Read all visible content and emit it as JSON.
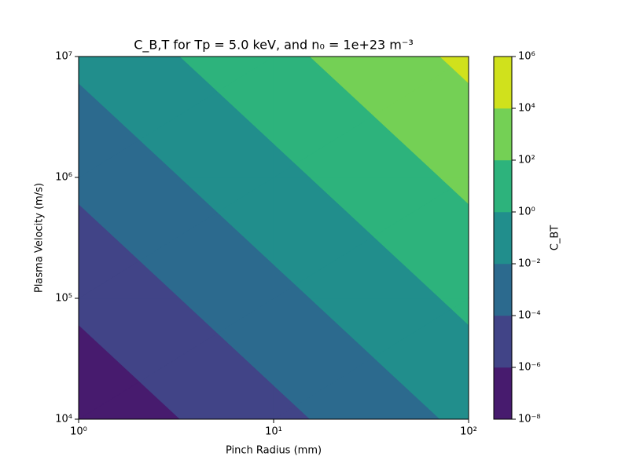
{
  "chart_data": {
    "type": "contourf",
    "title": "C_B,T for Tp = 5.0 keV, and n₀ = 1e+23 m⁻³",
    "xlabel": "Pinch Radius (mm)",
    "ylabel": "Plasma Velocity (m/s)",
    "x": [
      1,
      10,
      100
    ],
    "y": [
      10000,
      100000,
      1000000,
      10000000
    ],
    "z": [
      [
        2.75e-08,
        2.75e-05,
        0.0275
      ],
      [
        2.75e-06,
        0.00275,
        2.75
      ],
      [
        0.000275,
        0.275,
        275
      ],
      [
        0.0275,
        27.5,
        27500
      ]
    ],
    "xscale": "log",
    "yscale": "log",
    "xlim": [
      1,
      100
    ],
    "ylim": [
      10000,
      10000000
    ],
    "xticks": [
      {
        "value": 1,
        "label": "10⁰"
      },
      {
        "value": 10,
        "label": "10¹"
      },
      {
        "value": 100,
        "label": "10²"
      }
    ],
    "yticks": [
      {
        "value": 10000,
        "label": "10⁴"
      },
      {
        "value": 100000,
        "label": "10⁵"
      },
      {
        "value": 1000000,
        "label": "10⁶"
      },
      {
        "value": 10000000,
        "label": "10⁷"
      }
    ],
    "levels": [
      1e-08,
      1e-06,
      0.0001,
      0.01,
      1,
      100,
      10000,
      1000000
    ],
    "colors": [
      "#471b6e",
      "#414487",
      "#2c6a8e",
      "#218e8c",
      "#2db37c",
      "#74d055",
      "#d0e11c"
    ],
    "colorbar": {
      "label": "C_BT",
      "ticks": [
        {
          "value": 1e-08,
          "label": "10⁻⁸"
        },
        {
          "value": 1e-06,
          "label": "10⁻⁶"
        },
        {
          "value": 0.0001,
          "label": "10⁻⁴"
        },
        {
          "value": 0.01,
          "label": "10⁻²"
        },
        {
          "value": 1,
          "label": "10⁰"
        },
        {
          "value": 100,
          "label": "10²"
        },
        {
          "value": 10000,
          "label": "10⁴"
        },
        {
          "value": 1000000,
          "label": "10⁶"
        }
      ]
    }
  }
}
